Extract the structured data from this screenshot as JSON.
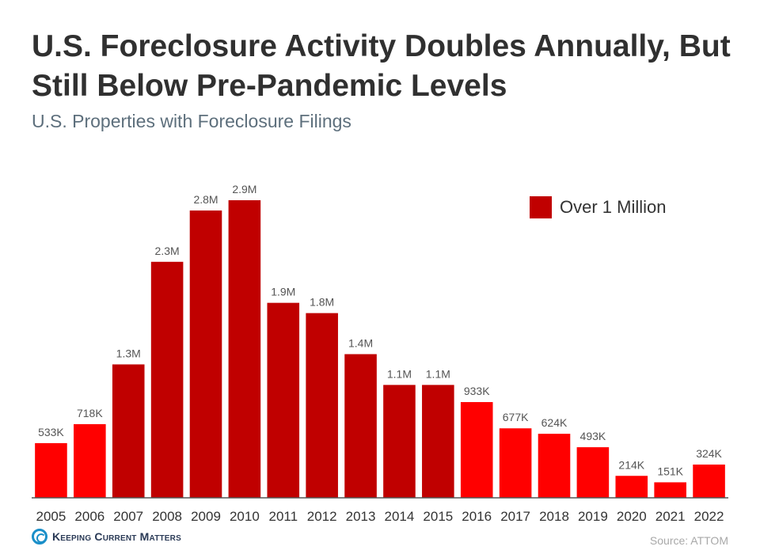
{
  "chart_data": {
    "type": "bar",
    "title": "U.S. Foreclosure Activity Doubles Annually, But Still Below Pre-Pandemic Levels",
    "subtitle": "U.S. Properties with Foreclosure Filings",
    "categories": [
      "2005",
      "2006",
      "2007",
      "2008",
      "2009",
      "2010",
      "2011",
      "2012",
      "2013",
      "2014",
      "2015",
      "2016",
      "2017",
      "2018",
      "2019",
      "2020",
      "2021",
      "2022"
    ],
    "values": [
      533000,
      718000,
      1300000,
      2300000,
      2800000,
      2900000,
      1900000,
      1800000,
      1400000,
      1100000,
      1100000,
      933000,
      677000,
      624000,
      493000,
      214000,
      151000,
      324000
    ],
    "data_labels": [
      "533K",
      "718K",
      "1.3M",
      "2.3M",
      "2.8M",
      "2.9M",
      "1.9M",
      "1.8M",
      "1.4M",
      "1.1M",
      "1.1M",
      "933K",
      "677K",
      "624K",
      "493K",
      "214K",
      "151K",
      "324K"
    ],
    "highlight": [
      false,
      false,
      true,
      true,
      true,
      true,
      true,
      true,
      true,
      true,
      true,
      false,
      false,
      false,
      false,
      false,
      false,
      false
    ],
    "ylim": [
      0,
      2900000
    ],
    "grid": false,
    "legend": {
      "position": "top-right",
      "entries": [
        {
          "label": "Over 1 Million",
          "color": "#c00000"
        }
      ]
    },
    "colors": {
      "default": "#ff0000",
      "highlight": "#c00000"
    }
  },
  "footer": {
    "brand": "Keeping Current Matters",
    "source": "Source: ATTOM"
  }
}
